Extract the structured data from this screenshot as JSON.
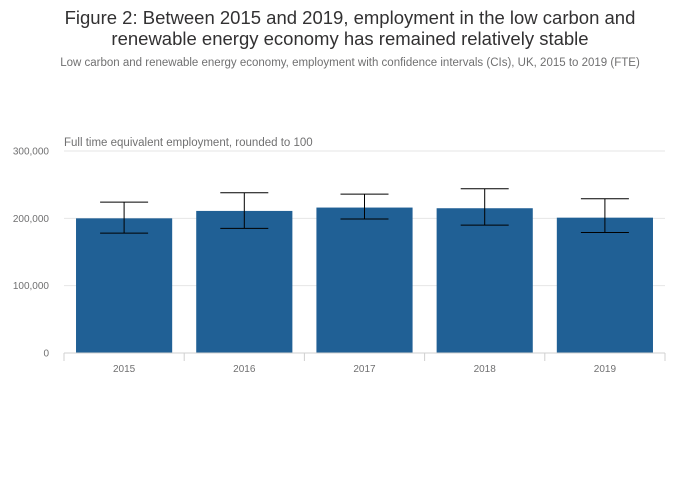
{
  "chart_data": {
    "type": "bar",
    "title_line1": "Figure 2: Between 2015 and 2019, employment in the low carbon and",
    "title_line2": "renewable energy economy has remained relatively stable",
    "subtitle": "Low carbon and renewable energy economy, employment with confidence intervals (CIs), UK, 2015 to 2019 (FTE)",
    "ylabel": "Full time equivalent employment, rounded to 100",
    "categories": [
      "2015",
      "2016",
      "2017",
      "2018",
      "2019"
    ],
    "values": [
      200000,
      211000,
      216000,
      215000,
      201000
    ],
    "ci_lower": [
      178000,
      185000,
      199000,
      190000,
      179000
    ],
    "ci_upper": [
      224000,
      238000,
      236000,
      244000,
      229000
    ],
    "ylim": [
      0,
      300000
    ],
    "yticks": [
      0,
      100000,
      200000,
      300000
    ],
    "ytick_labels": [
      "0",
      "100,000",
      "200,000",
      "300,000"
    ],
    "grid": true,
    "bar_color": "#206095"
  }
}
